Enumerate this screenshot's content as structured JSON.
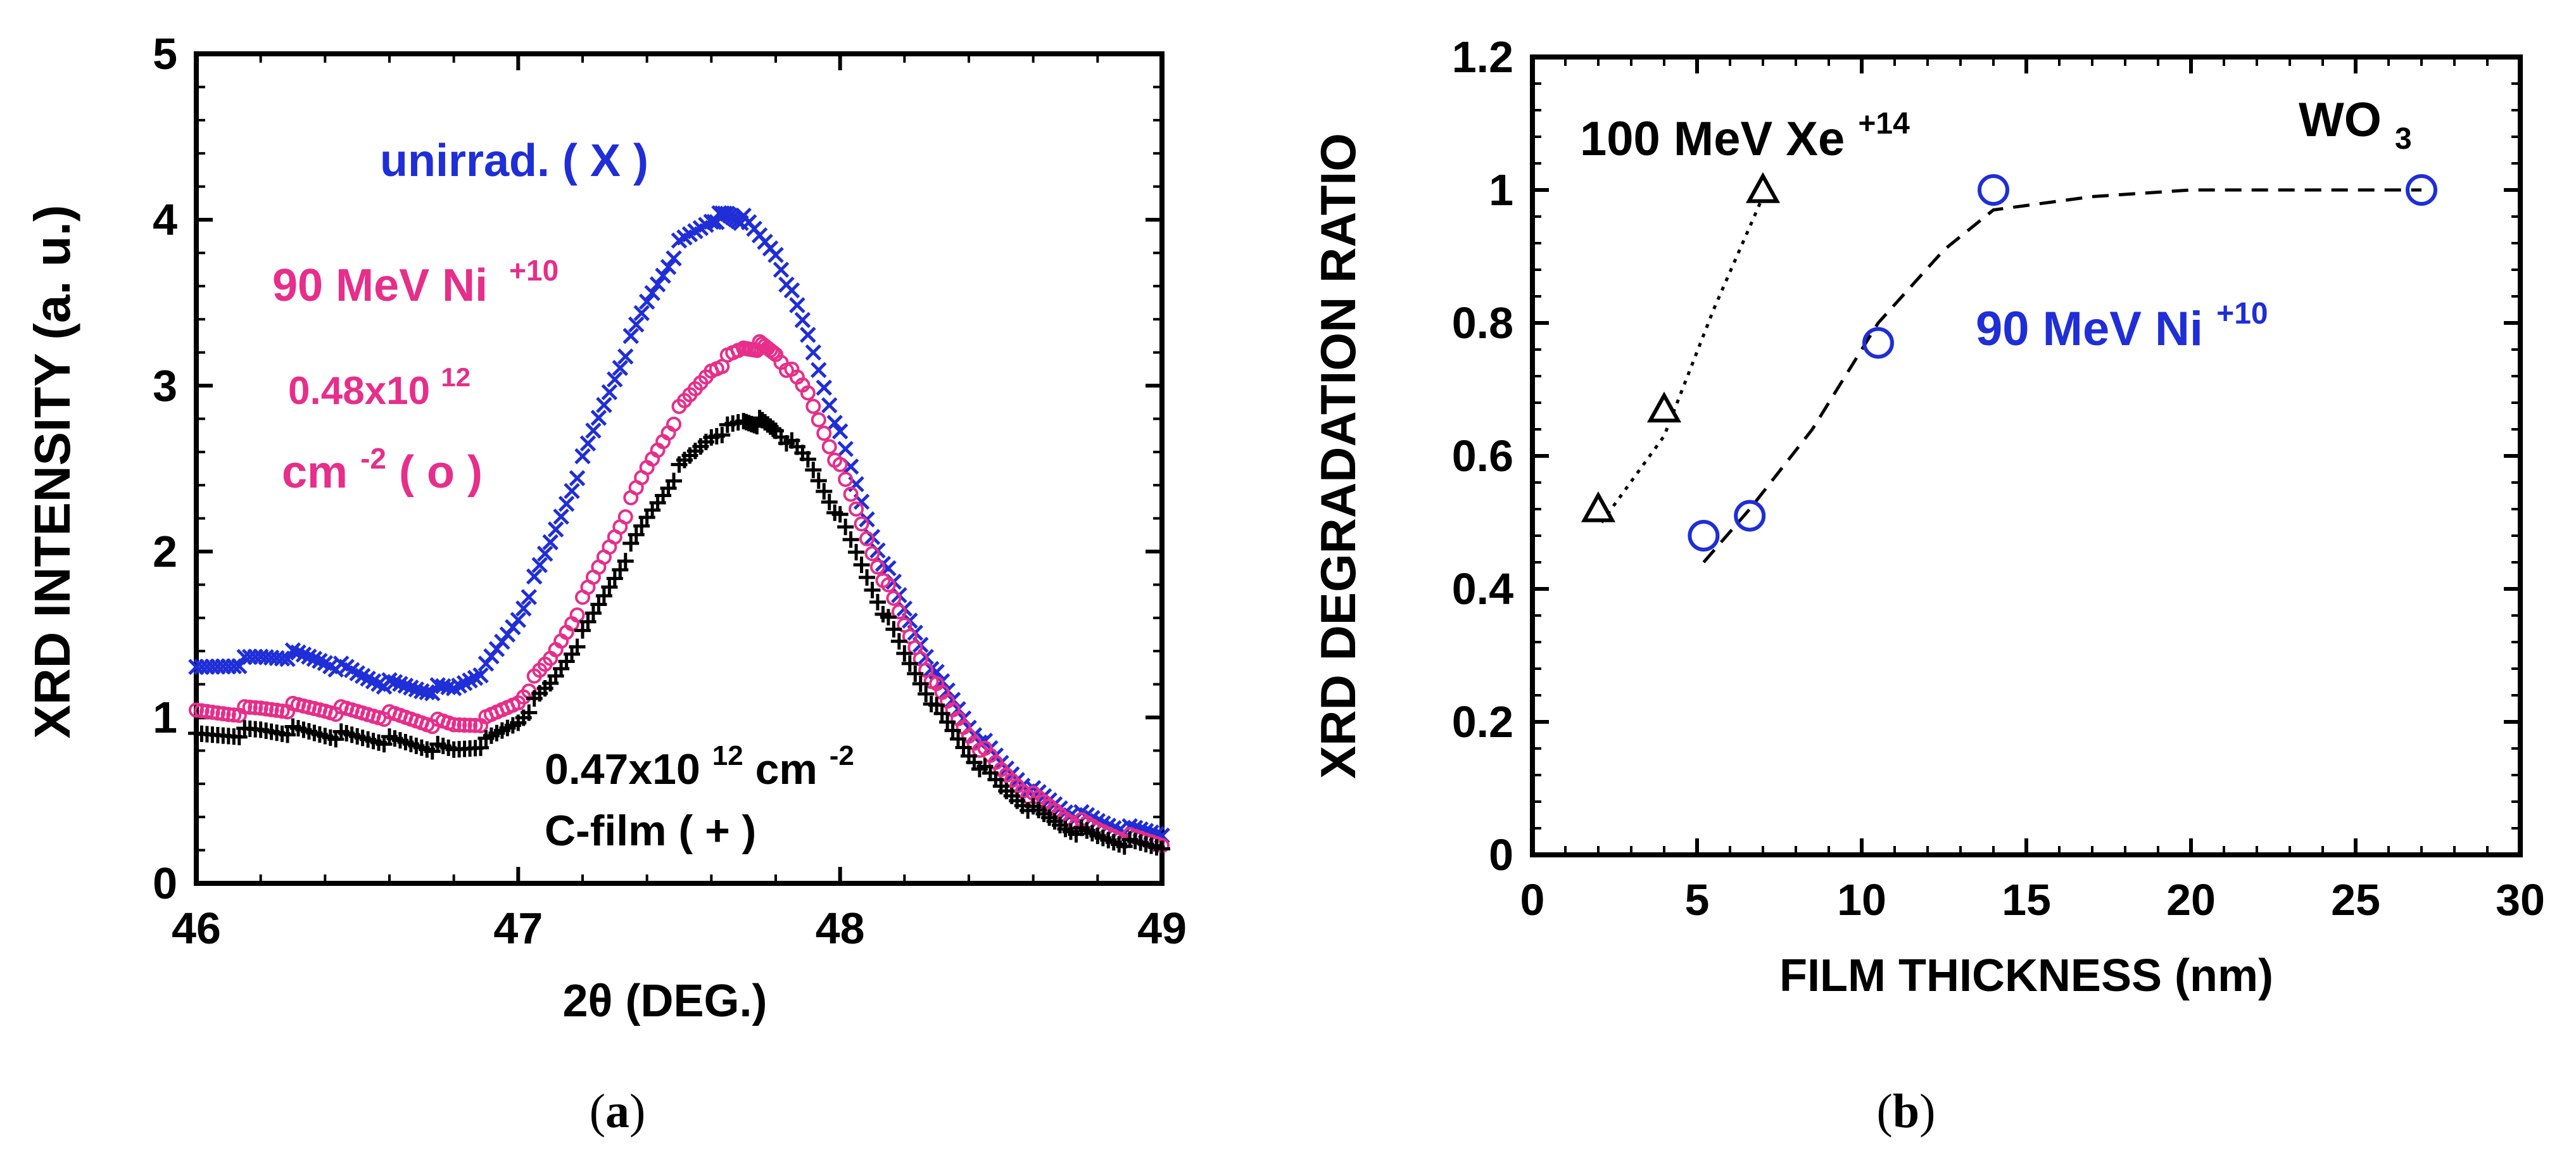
{
  "chart_data": [
    {
      "panel_label": "a",
      "type": "scatter",
      "xlabel": "2θ  (DEG.)",
      "ylabel": "XRD  INTENSITY (a. u.)",
      "xlim": [
        46,
        49
      ],
      "ylim": [
        0,
        5
      ],
      "xticks": [
        46,
        47,
        48,
        49
      ],
      "yticks": [
        0,
        1,
        2,
        3,
        4,
        5
      ],
      "x_tick_labels": [
        "46",
        "47",
        "48",
        "49"
      ],
      "y_tick_labels": [
        "0",
        "1",
        "2",
        "3",
        "4",
        "5"
      ],
      "annotations": {
        "unirrad": "unirrad. ( X )",
        "ni_line1": "90 MeV Ni",
        "ni_sup": "+10",
        "fluence_mant": "0.48x10",
        "fluence_exp": "12",
        "cm_text": "cm",
        "cm_exp": "-2",
        "cm_tail": " ( o )",
        "c_fluence_mant": "0.47x10",
        "c_fluence_exp": "12",
        "c_fluence_unit": " cm",
        "c_fluence_unit_exp": "-2",
        "cfilm": "C-film ( + )"
      },
      "series": [
        {
          "name": "unirrad. ( X )",
          "marker": "x",
          "color": "#1f2ed6",
          "x": [
            46.0,
            46.1,
            46.2,
            46.3,
            46.4,
            46.5,
            46.6,
            46.7,
            46.8,
            46.9,
            47.0,
            47.1,
            47.2,
            47.3,
            47.4,
            47.5,
            47.6,
            47.65,
            47.7,
            47.8,
            47.9,
            48.0,
            48.1,
            48.2,
            48.3,
            48.4,
            48.5,
            48.6,
            48.7,
            48.8,
            48.9,
            49.0
          ],
          "y": [
            1.28,
            1.32,
            1.36,
            1.38,
            1.34,
            1.26,
            1.2,
            1.17,
            1.17,
            1.3,
            1.6,
            2.05,
            2.55,
            3.05,
            3.5,
            3.85,
            4.0,
            4.03,
            4.0,
            3.8,
            3.3,
            2.7,
            2.1,
            1.65,
            1.25,
            0.95,
            0.72,
            0.55,
            0.44,
            0.37,
            0.32,
            0.3
          ]
        },
        {
          "name": "90 MeV Ni+10 0.48x10^12 cm-2 ( o )",
          "marker": "o",
          "color": "#e62e8a",
          "x": [
            46.0,
            46.1,
            46.2,
            46.3,
            46.4,
            46.5,
            46.6,
            46.7,
            46.8,
            46.9,
            47.0,
            47.1,
            47.2,
            47.3,
            47.4,
            47.5,
            47.6,
            47.7,
            47.75,
            47.8,
            47.9,
            48.0,
            48.1,
            48.2,
            48.3,
            48.4,
            48.5,
            48.6,
            48.7,
            48.8,
            48.9,
            49.0
          ],
          "y": [
            1.02,
            1.03,
            1.05,
            1.06,
            1.05,
            1.03,
            1.01,
            0.98,
            0.95,
            0.98,
            1.1,
            1.35,
            1.7,
            2.1,
            2.5,
            2.85,
            3.1,
            3.22,
            3.24,
            3.2,
            2.95,
            2.5,
            2.0,
            1.55,
            1.18,
            0.9,
            0.68,
            0.52,
            0.4,
            0.32,
            0.27,
            0.24
          ]
        },
        {
          "name": "C-film ( + )",
          "marker": "+",
          "color": "#000000",
          "x": [
            46.0,
            46.1,
            46.2,
            46.3,
            46.4,
            46.5,
            46.6,
            46.7,
            46.8,
            46.9,
            47.0,
            47.1,
            47.2,
            47.3,
            47.4,
            47.5,
            47.6,
            47.7,
            47.75,
            47.8,
            47.9,
            48.0,
            48.1,
            48.2,
            48.3,
            48.4,
            48.5,
            48.6,
            48.7,
            48.8,
            48.9,
            49.0
          ],
          "y": [
            0.88,
            0.9,
            0.92,
            0.92,
            0.9,
            0.88,
            0.86,
            0.83,
            0.8,
            0.85,
            0.98,
            1.2,
            1.5,
            1.85,
            2.2,
            2.5,
            2.7,
            2.78,
            2.78,
            2.74,
            2.55,
            2.2,
            1.78,
            1.38,
            1.05,
            0.78,
            0.58,
            0.44,
            0.34,
            0.28,
            0.24,
            0.22
          ]
        }
      ]
    },
    {
      "panel_label": "b",
      "type": "scatter",
      "xlabel": "FILM  THICKNESS  (nm)",
      "ylabel": "XRD DEGRADATION  RATIO",
      "xlim": [
        0,
        30
      ],
      "ylim": [
        0,
        1.2
      ],
      "xticks": [
        0,
        5,
        10,
        15,
        20,
        25,
        30
      ],
      "yticks": [
        0,
        0.2,
        0.4,
        0.6,
        0.8,
        1.0,
        1.2
      ],
      "x_tick_labels": [
        "0",
        "5",
        "10",
        "15",
        "20",
        "25",
        "30"
      ],
      "y_tick_labels": [
        "0",
        "0.2",
        "0.4",
        "0.6",
        "0.8",
        "1",
        "1.2"
      ],
      "annotations": {
        "xe_main": "100 MeV Xe",
        "xe_sup": "+14",
        "wo3_main": "WO",
        "wo3_sub": "3",
        "ni_main": "90 MeV Ni",
        "ni_sup": "+10"
      },
      "series": [
        {
          "name": "100 MeV Xe+14",
          "marker": "triangle",
          "color": "#000000",
          "x": [
            2,
            4,
            7
          ],
          "y": [
            0.52,
            0.67,
            1.0
          ],
          "fit_line": {
            "style": "dotted",
            "x": [
              2.1,
              4.0,
              5.5,
              7.0
            ],
            "y": [
              0.5,
              0.63,
              0.82,
              0.99
            ]
          }
        },
        {
          "name": "90 MeV Ni+10",
          "marker": "circle",
          "color": "#1f2ed6",
          "x": [
            5.2,
            6.6,
            10.5,
            14,
            27
          ],
          "y": [
            0.48,
            0.51,
            0.77,
            1.0,
            1.0
          ],
          "fit_line": {
            "style": "dashed",
            "x": [
              5.2,
              6.6,
              8.5,
              10.5,
              12.5,
              14.0,
              17.0,
              20.0,
              24.0,
              27.0
            ],
            "y": [
              0.44,
              0.52,
              0.64,
              0.8,
              0.91,
              0.97,
              0.99,
              1.0,
              1.0,
              1.0
            ]
          }
        }
      ]
    }
  ],
  "captions": {
    "a_open": "(",
    "a_letter": "a",
    "a_close": ")",
    "b_open": "(",
    "b_letter": "b",
    "b_close": ")"
  }
}
